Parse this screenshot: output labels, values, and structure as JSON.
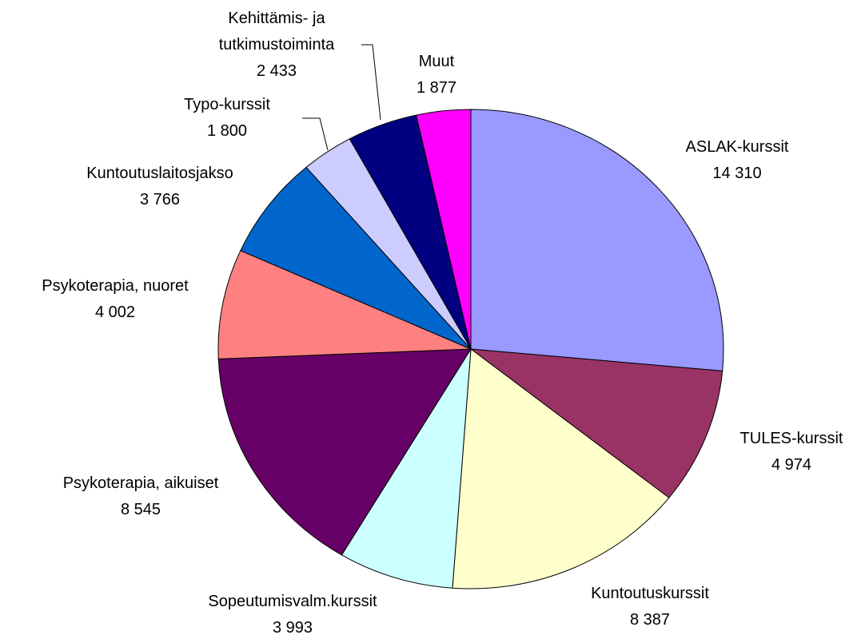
{
  "chart_data": {
    "type": "pie",
    "categories": [
      "ASLAK-kurssit",
      "TULES-kurssit",
      "Kuntoutuskurssit",
      "Sopeutumisvalm.kurssit",
      "Psykoterapia, aikuiset",
      "Psykoterapia, nuoret",
      "Kuntoutuslaitosjakso",
      "Typo-kurssit",
      "Kehittämis- ja\ntutkimustoiminta",
      "Muut"
    ],
    "values": [
      14310,
      4974,
      8387,
      3993,
      8545,
      4002,
      3766,
      1800,
      2433,
      1877
    ],
    "value_labels": [
      "14 310",
      "4 974",
      "8 387",
      "3 993",
      "8 545",
      "4 002",
      "3 766",
      "1 800",
      "2 433",
      "1 877"
    ],
    "colors": [
      "#9999ff",
      "#993366",
      "#ffffcc",
      "#ccffff",
      "#660066",
      "#ff8080",
      "#0066cc",
      "#ccccff",
      "#000080",
      "#ff00ff"
    ]
  }
}
